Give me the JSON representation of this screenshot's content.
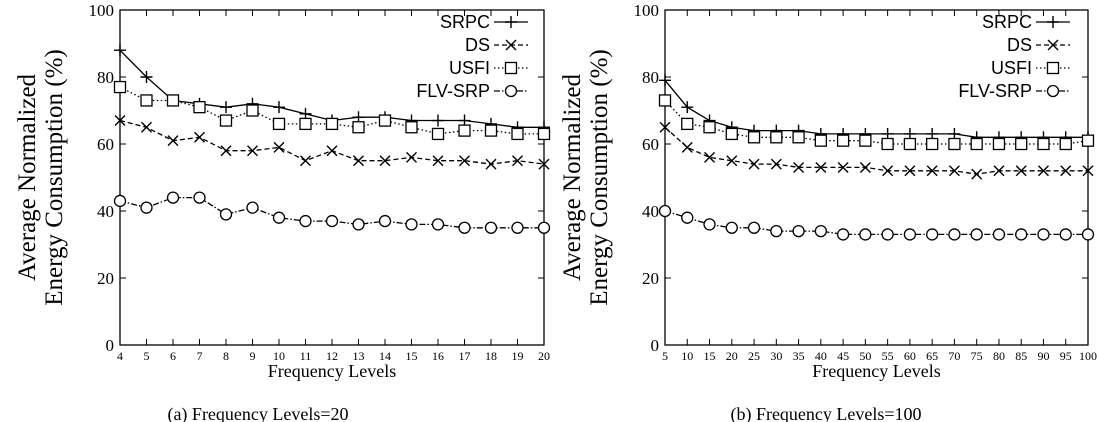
{
  "chart_data": [
    {
      "type": "line",
      "caption": "(a) Frequency Levels=20",
      "xlabel": "Frequency Levels",
      "ylabel_lines": [
        "Average Normalized",
        "Energy Consumption (%)"
      ],
      "x": [
        4,
        5,
        6,
        7,
        8,
        9,
        10,
        11,
        12,
        13,
        14,
        15,
        16,
        17,
        18,
        19,
        20
      ],
      "xlim": [
        4,
        20
      ],
      "ylim": [
        0,
        100
      ],
      "yticks": [
        0,
        20,
        40,
        60,
        80,
        100
      ],
      "legend_position": "top-right",
      "grid": false,
      "series": [
        {
          "name": "SRPC",
          "marker": "plus",
          "line": "solid",
          "values": [
            88,
            80,
            73,
            72,
            71,
            72,
            71,
            69,
            67,
            68,
            68,
            67,
            67,
            67,
            66,
            65,
            65
          ]
        },
        {
          "name": "DS",
          "marker": "cross",
          "line": "dashed",
          "values": [
            67,
            65,
            61,
            62,
            58,
            58,
            59,
            55,
            58,
            55,
            55,
            56,
            55,
            55,
            54,
            55,
            54
          ]
        },
        {
          "name": "USFI",
          "marker": "square",
          "line": "dotted",
          "values": [
            77,
            73,
            73,
            71,
            67,
            70,
            66,
            66,
            66,
            65,
            67,
            65,
            63,
            64,
            64,
            63,
            63
          ]
        },
        {
          "name": "FLV-SRP",
          "marker": "circle",
          "line": "dashdot",
          "values": [
            43,
            41,
            44,
            44,
            39,
            41,
            38,
            37,
            37,
            36,
            37,
            36,
            36,
            35,
            35,
            35,
            35
          ]
        }
      ]
    },
    {
      "type": "line",
      "caption": "(b) Frequency Levels=100",
      "xlabel": "Frequency Levels",
      "ylabel_lines": [
        "Average Normalized",
        "Energy Consumption (%)"
      ],
      "x": [
        5,
        10,
        15,
        20,
        25,
        30,
        35,
        40,
        45,
        50,
        55,
        60,
        65,
        70,
        75,
        80,
        85,
        90,
        95,
        100
      ],
      "xlim": [
        5,
        100
      ],
      "ylim": [
        0,
        100
      ],
      "yticks": [
        0,
        20,
        40,
        60,
        80,
        100
      ],
      "legend_position": "top-right",
      "grid": false,
      "series": [
        {
          "name": "SRPC",
          "marker": "plus",
          "line": "solid",
          "values": [
            79,
            71,
            67,
            65,
            64,
            64,
            64,
            63,
            63,
            63,
            63,
            63,
            63,
            63,
            62,
            62,
            62,
            62,
            62,
            62
          ]
        },
        {
          "name": "DS",
          "marker": "cross",
          "line": "dashed",
          "values": [
            65,
            59,
            56,
            55,
            54,
            54,
            53,
            53,
            53,
            53,
            52,
            52,
            52,
            52,
            51,
            52,
            52,
            52,
            52,
            52
          ]
        },
        {
          "name": "USFI",
          "marker": "square",
          "line": "dotted",
          "values": [
            73,
            66,
            65,
            63,
            62,
            62,
            62,
            61,
            61,
            61,
            60,
            60,
            60,
            60,
            60,
            60,
            60,
            60,
            60,
            61
          ]
        },
        {
          "name": "FLV-SRP",
          "marker": "circle",
          "line": "dashdot",
          "values": [
            40,
            38,
            36,
            35,
            35,
            34,
            34,
            34,
            33,
            33,
            33,
            33,
            33,
            33,
            33,
            33,
            33,
            33,
            33,
            33
          ]
        }
      ]
    }
  ]
}
